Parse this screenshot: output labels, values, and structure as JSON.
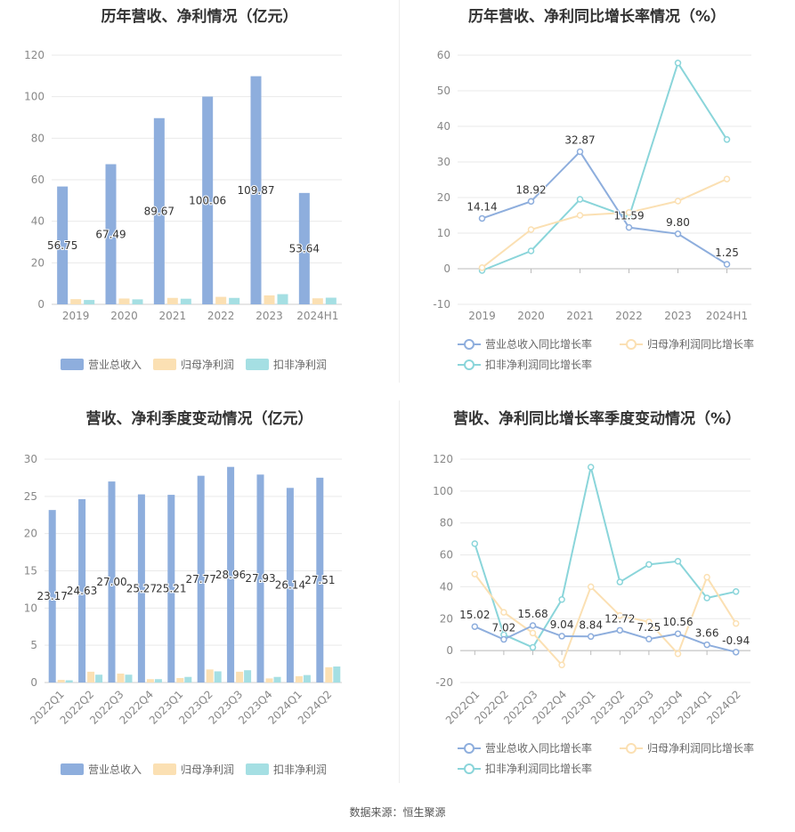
{
  "footer": {
    "source": "数据来源：恒生聚源"
  },
  "colors": {
    "revenue": "#8eaedd",
    "parent_net": "#fbe0b3",
    "deducted_net": "#a5dfe3",
    "rev_line": "#8eaedd",
    "parent_line": "#fbe0b3",
    "deducted_line": "#8ad5da"
  },
  "chart_data": [
    {
      "type": "bar",
      "title": "历年营收、净利情况（亿元）",
      "categories": [
        "2019",
        "2020",
        "2021",
        "2022",
        "2023",
        "2024H1"
      ],
      "ylim": [
        0,
        120
      ],
      "yticks": [
        0,
        20,
        40,
        60,
        80,
        100,
        120
      ],
      "series": [
        {
          "name": "营业总收入",
          "values": [
            56.75,
            67.49,
            89.67,
            100.06,
            109.87,
            53.64
          ],
          "labels": [
            "56.75",
            "67.49",
            "89.67",
            "100.06",
            "109.87",
            "53.64"
          ]
        },
        {
          "name": "归母净利润",
          "values": [
            2.5,
            2.8,
            3.1,
            3.6,
            4.3,
            2.9
          ]
        },
        {
          "name": "扣非净利润",
          "values": [
            2.1,
            2.4,
            2.7,
            3.1,
            4.9,
            3.2
          ]
        }
      ],
      "legend": "bottom",
      "grid": true
    },
    {
      "type": "line",
      "title": "历年营收、净利同比增长率情况（%）",
      "categories": [
        "2019",
        "2020",
        "2021",
        "2022",
        "2023",
        "2024H1"
      ],
      "ylim": [
        -10,
        60
      ],
      "yticks": [
        -10,
        0,
        10,
        20,
        30,
        40,
        50,
        60
      ],
      "series": [
        {
          "name": "营业总收入同比增长率",
          "values": [
            14.14,
            18.92,
            32.87,
            11.59,
            9.8,
            1.25
          ],
          "labels": [
            "14.14",
            "18.92",
            "32.87",
            "11.59",
            "9.80",
            "1.25"
          ]
        },
        {
          "name": "归母净利润同比增长率",
          "values": [
            0.3,
            11.0,
            15.0,
            15.8,
            19.0,
            25.2
          ]
        },
        {
          "name": "扣非净利润同比增长率",
          "values": [
            -0.5,
            5.0,
            19.5,
            14.5,
            57.8,
            36.3
          ]
        }
      ],
      "legend": "bottom",
      "grid": true
    },
    {
      "type": "bar",
      "title": "营收、净利季度变动情况（亿元）",
      "categories": [
        "2022Q1",
        "2022Q2",
        "2022Q3",
        "2022Q4",
        "2023Q1",
        "2023Q2",
        "2023Q3",
        "2023Q4",
        "2024Q1",
        "2024Q2"
      ],
      "ylim": [
        0,
        30
      ],
      "yticks": [
        0,
        5,
        10,
        15,
        20,
        25,
        30
      ],
      "series": [
        {
          "name": "营业总收入",
          "values": [
            23.17,
            24.63,
            27.0,
            25.27,
            25.21,
            27.77,
            28.96,
            27.93,
            26.14,
            27.51
          ],
          "labels": [
            "23.17",
            "24.63",
            "27.00",
            "25.27",
            "25.21",
            "27.77",
            "28.96",
            "27.93",
            "26.14",
            "27.51"
          ]
        },
        {
          "name": "归母净利润",
          "values": [
            0.35,
            1.45,
            1.2,
            0.45,
            0.6,
            1.75,
            1.45,
            0.55,
            0.85,
            2.05
          ]
        },
        {
          "name": "扣非净利润",
          "values": [
            0.3,
            1.05,
            1.05,
            0.45,
            0.75,
            1.5,
            1.65,
            0.75,
            1.0,
            2.15
          ]
        }
      ],
      "legend": "bottom",
      "grid": true
    },
    {
      "type": "line",
      "title": "营收、净利同比增长率季度变动情况（%）",
      "categories": [
        "2022Q1",
        "2022Q2",
        "2022Q3",
        "2022Q4",
        "2023Q1",
        "2023Q2",
        "2023Q3",
        "2023Q4",
        "2024Q1",
        "2024Q2"
      ],
      "ylim": [
        -20,
        120
      ],
      "yticks": [
        -20,
        0,
        20,
        40,
        60,
        80,
        100,
        120
      ],
      "series": [
        {
          "name": "营业总收入同比增长率",
          "values": [
            15.02,
            7.02,
            15.68,
            9.04,
            8.84,
            12.72,
            7.25,
            10.56,
            3.66,
            -0.94
          ],
          "labels": [
            "15.02",
            "7.02",
            "15.68",
            "9.04",
            "8.84",
            "12.72",
            "7.25",
            "10.56",
            "3.66",
            "-0.94"
          ]
        },
        {
          "name": "归母净利润同比增长率",
          "values": [
            48,
            24,
            11,
            -9,
            40,
            22,
            18,
            -2,
            46,
            17
          ]
        },
        {
          "name": "扣非净利润同比增长率",
          "values": [
            67,
            10,
            2,
            32,
            115,
            43,
            54,
            56,
            33,
            37
          ]
        }
      ],
      "legend": "bottom",
      "grid": true
    }
  ]
}
